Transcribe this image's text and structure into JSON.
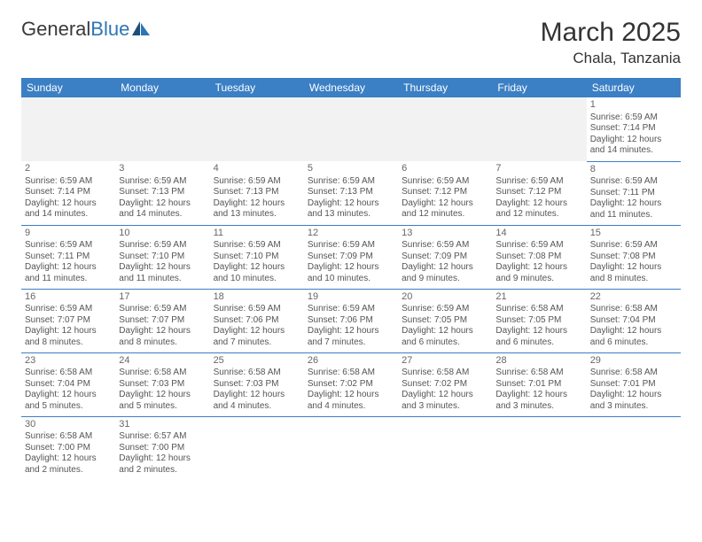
{
  "brand": {
    "part1": "General",
    "part2": "Blue"
  },
  "title": "March 2025",
  "location": "Chala, Tanzania",
  "colors": {
    "header_bg": "#3b7fc4",
    "header_text": "#ffffff",
    "cell_border": "#3b7fc4",
    "blank_bg": "#f2f2f2",
    "text": "#555555",
    "brand_blue": "#2e75b6"
  },
  "weekdays": [
    "Sunday",
    "Monday",
    "Tuesday",
    "Wednesday",
    "Thursday",
    "Friday",
    "Saturday"
  ],
  "weeks": [
    [
      null,
      null,
      null,
      null,
      null,
      null,
      {
        "d": "1",
        "sr": "6:59 AM",
        "ss": "7:14 PM",
        "dl": "12 hours and 14 minutes."
      }
    ],
    [
      {
        "d": "2",
        "sr": "6:59 AM",
        "ss": "7:14 PM",
        "dl": "12 hours and 14 minutes."
      },
      {
        "d": "3",
        "sr": "6:59 AM",
        "ss": "7:13 PM",
        "dl": "12 hours and 14 minutes."
      },
      {
        "d": "4",
        "sr": "6:59 AM",
        "ss": "7:13 PM",
        "dl": "12 hours and 13 minutes."
      },
      {
        "d": "5",
        "sr": "6:59 AM",
        "ss": "7:13 PM",
        "dl": "12 hours and 13 minutes."
      },
      {
        "d": "6",
        "sr": "6:59 AM",
        "ss": "7:12 PM",
        "dl": "12 hours and 12 minutes."
      },
      {
        "d": "7",
        "sr": "6:59 AM",
        "ss": "7:12 PM",
        "dl": "12 hours and 12 minutes."
      },
      {
        "d": "8",
        "sr": "6:59 AM",
        "ss": "7:11 PM",
        "dl": "12 hours and 11 minutes."
      }
    ],
    [
      {
        "d": "9",
        "sr": "6:59 AM",
        "ss": "7:11 PM",
        "dl": "12 hours and 11 minutes."
      },
      {
        "d": "10",
        "sr": "6:59 AM",
        "ss": "7:10 PM",
        "dl": "12 hours and 11 minutes."
      },
      {
        "d": "11",
        "sr": "6:59 AM",
        "ss": "7:10 PM",
        "dl": "12 hours and 10 minutes."
      },
      {
        "d": "12",
        "sr": "6:59 AM",
        "ss": "7:09 PM",
        "dl": "12 hours and 10 minutes."
      },
      {
        "d": "13",
        "sr": "6:59 AM",
        "ss": "7:09 PM",
        "dl": "12 hours and 9 minutes."
      },
      {
        "d": "14",
        "sr": "6:59 AM",
        "ss": "7:08 PM",
        "dl": "12 hours and 9 minutes."
      },
      {
        "d": "15",
        "sr": "6:59 AM",
        "ss": "7:08 PM",
        "dl": "12 hours and 8 minutes."
      }
    ],
    [
      {
        "d": "16",
        "sr": "6:59 AM",
        "ss": "7:07 PM",
        "dl": "12 hours and 8 minutes."
      },
      {
        "d": "17",
        "sr": "6:59 AM",
        "ss": "7:07 PM",
        "dl": "12 hours and 8 minutes."
      },
      {
        "d": "18",
        "sr": "6:59 AM",
        "ss": "7:06 PM",
        "dl": "12 hours and 7 minutes."
      },
      {
        "d": "19",
        "sr": "6:59 AM",
        "ss": "7:06 PM",
        "dl": "12 hours and 7 minutes."
      },
      {
        "d": "20",
        "sr": "6:59 AM",
        "ss": "7:05 PM",
        "dl": "12 hours and 6 minutes."
      },
      {
        "d": "21",
        "sr": "6:58 AM",
        "ss": "7:05 PM",
        "dl": "12 hours and 6 minutes."
      },
      {
        "d": "22",
        "sr": "6:58 AM",
        "ss": "7:04 PM",
        "dl": "12 hours and 6 minutes."
      }
    ],
    [
      {
        "d": "23",
        "sr": "6:58 AM",
        "ss": "7:04 PM",
        "dl": "12 hours and 5 minutes."
      },
      {
        "d": "24",
        "sr": "6:58 AM",
        "ss": "7:03 PM",
        "dl": "12 hours and 5 minutes."
      },
      {
        "d": "25",
        "sr": "6:58 AM",
        "ss": "7:03 PM",
        "dl": "12 hours and 4 minutes."
      },
      {
        "d": "26",
        "sr": "6:58 AM",
        "ss": "7:02 PM",
        "dl": "12 hours and 4 minutes."
      },
      {
        "d": "27",
        "sr": "6:58 AM",
        "ss": "7:02 PM",
        "dl": "12 hours and 3 minutes."
      },
      {
        "d": "28",
        "sr": "6:58 AM",
        "ss": "7:01 PM",
        "dl": "12 hours and 3 minutes."
      },
      {
        "d": "29",
        "sr": "6:58 AM",
        "ss": "7:01 PM",
        "dl": "12 hours and 3 minutes."
      }
    ],
    [
      {
        "d": "30",
        "sr": "6:58 AM",
        "ss": "7:00 PM",
        "dl": "12 hours and 2 minutes."
      },
      {
        "d": "31",
        "sr": "6:57 AM",
        "ss": "7:00 PM",
        "dl": "12 hours and 2 minutes."
      },
      null,
      null,
      null,
      null,
      null
    ]
  ],
  "labels": {
    "sunrise": "Sunrise:",
    "sunset": "Sunset:",
    "daylight": "Daylight:"
  }
}
